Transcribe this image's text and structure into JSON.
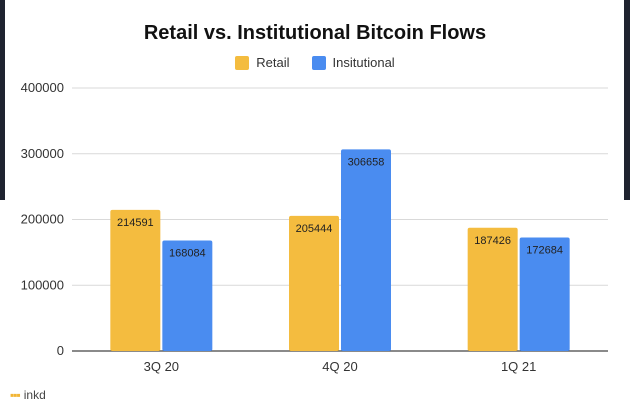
{
  "chart_data": {
    "type": "bar",
    "title": "Retail vs. Institutional Bitcoin Flows",
    "categories": [
      "3Q 20",
      "4Q 20",
      "1Q 21"
    ],
    "series": [
      {
        "name": "Retail",
        "values": [
          214591,
          205444,
          187426
        ],
        "color": "#f4bc3f"
      },
      {
        "name": "Insitutional",
        "values": [
          168084,
          306658,
          172684
        ],
        "color": "#4a8cf0"
      }
    ],
    "yticks": [
      0,
      100000,
      200000,
      300000,
      400000
    ],
    "ylim": [
      0,
      400000
    ],
    "grid": true,
    "legend_position": "top-center"
  },
  "watermark": {
    "text": "inkd"
  }
}
